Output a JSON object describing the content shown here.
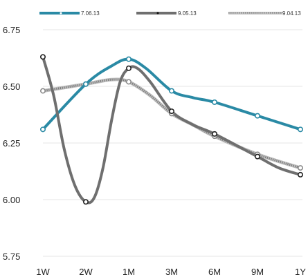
{
  "chart_data": {
    "type": "line",
    "categories": [
      "1W",
      "2W",
      "1M",
      "3M",
      "6M",
      "9M",
      "1Y"
    ],
    "ylim": [
      5.75,
      6.75
    ],
    "yticks": [
      5.75,
      6.0,
      6.25,
      6.5,
      6.75
    ],
    "ytick_labels": [
      "5.75",
      "6.00",
      "6.25",
      "6.50",
      "6.75"
    ],
    "grid": true,
    "legend": "top",
    "series": [
      {
        "name": "7.06.13",
        "color": "#2a8aa5",
        "style": "solid",
        "values": [
          6.31,
          6.51,
          6.62,
          6.48,
          6.43,
          6.37,
          6.31
        ],
        "curve": [
          [
            0.0,
            6.31
          ],
          [
            1.0,
            6.51
          ],
          [
            1.6,
            6.59
          ],
          [
            2.0,
            6.62
          ],
          [
            2.4,
            6.58
          ],
          [
            3.0,
            6.48
          ],
          [
            3.5,
            6.45
          ],
          [
            4.0,
            6.43
          ],
          [
            5.0,
            6.37
          ],
          [
            6.0,
            6.31
          ]
        ]
      },
      {
        "name": "9.05.13",
        "color": "#6f6f6f",
        "style": "solid",
        "values": [
          6.63,
          5.99,
          6.58,
          6.39,
          6.29,
          6.19,
          6.11
        ],
        "curve": [
          [
            0.0,
            6.63
          ],
          [
            0.25,
            6.46
          ],
          [
            0.5,
            6.22
          ],
          [
            0.75,
            6.06
          ],
          [
            1.0,
            5.99
          ],
          [
            1.2,
            6.01
          ],
          [
            1.4,
            6.14
          ],
          [
            1.6,
            6.35
          ],
          [
            1.8,
            6.52
          ],
          [
            2.0,
            6.58
          ],
          [
            2.2,
            6.58
          ],
          [
            2.5,
            6.52
          ],
          [
            3.0,
            6.39
          ],
          [
            3.5,
            6.33
          ],
          [
            4.0,
            6.29
          ],
          [
            5.0,
            6.19
          ],
          [
            5.5,
            6.14
          ],
          [
            6.0,
            6.11
          ]
        ]
      },
      {
        "name": "9.04.13",
        "color": "#a6a6a6",
        "style": "dotted",
        "values": [
          6.48,
          6.51,
          6.52,
          6.38,
          6.28,
          6.2,
          6.14
        ],
        "curve": [
          [
            0.0,
            6.48
          ],
          [
            1.0,
            6.51
          ],
          [
            1.6,
            6.53
          ],
          [
            2.0,
            6.52
          ],
          [
            2.5,
            6.46
          ],
          [
            3.0,
            6.38
          ],
          [
            3.5,
            6.33
          ],
          [
            4.0,
            6.28
          ],
          [
            5.0,
            6.2
          ],
          [
            6.0,
            6.14
          ]
        ]
      }
    ]
  }
}
